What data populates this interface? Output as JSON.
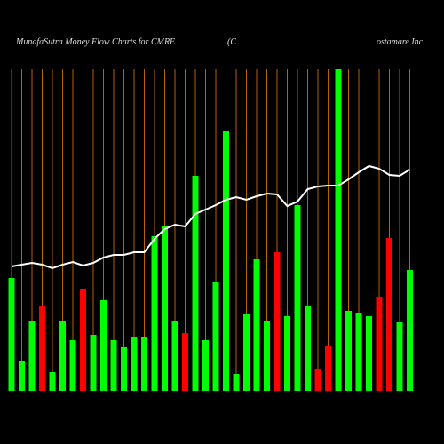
{
  "chart_data": {
    "type": "bar",
    "title": "MunafaSutra  Money Flow  Charts for CMRE",
    "subtitle": "(C",
    "subtitle2": "ostamare   Inc",
    "categories": [
      null,
      null,
      null,
      null,
      null,
      null,
      null,
      null,
      null,
      null,
      null,
      null,
      null,
      null,
      null,
      null,
      null,
      null,
      null,
      null,
      null,
      null,
      null,
      null,
      null,
      null,
      null,
      null,
      null,
      null,
      null,
      null,
      null,
      null,
      null,
      null,
      null,
      null,
      null,
      null
    ],
    "values": [
      127,
      33,
      78,
      95,
      21,
      78,
      57,
      114,
      63,
      102,
      57,
      49,
      61,
      61,
      174,
      186,
      79,
      65,
      242,
      57,
      122,
      293,
      19,
      86,
      148,
      78,
      156,
      84,
      209,
      95,
      24,
      50,
      362,
      90,
      87,
      84,
      106,
      172,
      77,
      136
    ],
    "colors": [
      "#00ff00",
      "#00ff00",
      "#00ff00",
      "#ff0000",
      "#00ff00",
      "#00ff00",
      "#00ff00",
      "#ff0000",
      "#00ff00",
      "#00ff00",
      "#00ff00",
      "#00ff00",
      "#00ff00",
      "#00ff00",
      "#00ff00",
      "#00ff00",
      "#00ff00",
      "#ff0000",
      "#00ff00",
      "#00ff00",
      "#00ff00",
      "#00ff00",
      "#00ff00",
      "#00ff00",
      "#00ff00",
      "#00ff00",
      "#ff0000",
      "#00ff00",
      "#00ff00",
      "#00ff00",
      "#ff0000",
      "#ff0000",
      "#00ff00",
      "#00ff00",
      "#00ff00",
      "#00ff00",
      "#ff0000",
      "#ff0000",
      "#00ff00",
      "#00ff00"
    ],
    "line_values": [
      140,
      142,
      144,
      142,
      138,
      142,
      145,
      141,
      144,
      150,
      153,
      153,
      156,
      156,
      171,
      182,
      187,
      185,
      199,
      204,
      209,
      215,
      218,
      215,
      219,
      222,
      221,
      208,
      213,
      227,
      230,
      231,
      231,
      238,
      246,
      253,
      250,
      243,
      242,
      249
    ],
    "line_color": "#ffffff",
    "grid_color": "#b8600b",
    "ylim": [
      0,
      362
    ]
  }
}
